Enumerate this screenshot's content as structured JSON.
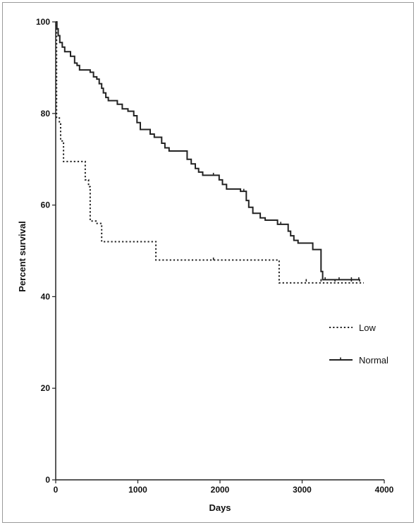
{
  "chart_data": {
    "type": "line",
    "xlabel": "Days",
    "ylabel": "Percent survival",
    "xlim": [
      0,
      4000
    ],
    "ylim": [
      0,
      100
    ],
    "xticks": [
      0,
      1000,
      2000,
      3000,
      4000
    ],
    "yticks": [
      0,
      20,
      40,
      60,
      80,
      100
    ],
    "xtick_labels": [
      "0",
      "1000",
      "2000",
      "3000",
      "4000"
    ],
    "ytick_labels": [
      "0",
      "20",
      "40",
      "60",
      "80",
      "100"
    ],
    "grid": false,
    "legend": "right",
    "series": [
      {
        "name": "Low",
        "style": "dotted",
        "color": "#222222",
        "steps": [
          [
            0,
            100
          ],
          [
            10,
            79
          ],
          [
            45,
            78
          ],
          [
            60,
            74
          ],
          [
            95,
            69.5
          ],
          [
            360,
            65.5
          ],
          [
            400,
            64
          ],
          [
            420,
            56.5
          ],
          [
            490,
            56
          ],
          [
            560,
            52
          ],
          [
            1220,
            48
          ],
          [
            2720,
            43
          ],
          [
            3750,
            43
          ]
        ],
        "censors": [
          [
            1920,
            48
          ],
          [
            3050,
            43.3
          ],
          [
            3230,
            43.3
          ],
          [
            3400,
            43.3
          ],
          [
            3600,
            43.3
          ],
          [
            3700,
            43.3
          ]
        ]
      },
      {
        "name": "Normal",
        "style": "solid",
        "color": "#222222",
        "steps": [
          [
            0,
            100
          ],
          [
            15,
            98.5
          ],
          [
            30,
            97
          ],
          [
            50,
            95.5
          ],
          [
            80,
            94.5
          ],
          [
            110,
            93.5
          ],
          [
            180,
            92.5
          ],
          [
            230,
            91
          ],
          [
            260,
            90.5
          ],
          [
            290,
            89.5
          ],
          [
            420,
            89
          ],
          [
            460,
            88
          ],
          [
            500,
            87.5
          ],
          [
            530,
            86.5
          ],
          [
            560,
            85.5
          ],
          [
            580,
            84.5
          ],
          [
            610,
            83.5
          ],
          [
            640,
            82.8
          ],
          [
            750,
            82
          ],
          [
            810,
            81
          ],
          [
            880,
            80.5
          ],
          [
            950,
            79.5
          ],
          [
            990,
            78
          ],
          [
            1030,
            76.5
          ],
          [
            1150,
            75.5
          ],
          [
            1200,
            74.8
          ],
          [
            1290,
            73.5
          ],
          [
            1330,
            72.5
          ],
          [
            1380,
            71.8
          ],
          [
            1600,
            70
          ],
          [
            1650,
            69
          ],
          [
            1700,
            68
          ],
          [
            1740,
            67.2
          ],
          [
            1790,
            66.5
          ],
          [
            1990,
            65.5
          ],
          [
            2030,
            64.5
          ],
          [
            2080,
            63.5
          ],
          [
            2250,
            63
          ],
          [
            2320,
            61
          ],
          [
            2350,
            59.5
          ],
          [
            2400,
            58.2
          ],
          [
            2490,
            57.2
          ],
          [
            2550,
            56.7
          ],
          [
            2700,
            55.8
          ],
          [
            2830,
            54.3
          ],
          [
            2860,
            53.3
          ],
          [
            2900,
            52.3
          ],
          [
            2950,
            51.7
          ],
          [
            3130,
            50.3
          ],
          [
            3230,
            45.5
          ],
          [
            3250,
            43.7
          ],
          [
            3700,
            43.7
          ]
        ],
        "censors": [
          [
            1920,
            66.5
          ],
          [
            2290,
            63
          ],
          [
            2740,
            55.8
          ],
          [
            3280,
            43.7
          ],
          [
            3450,
            43.7
          ],
          [
            3600,
            43.7
          ],
          [
            3690,
            43.7
          ]
        ]
      }
    ]
  }
}
